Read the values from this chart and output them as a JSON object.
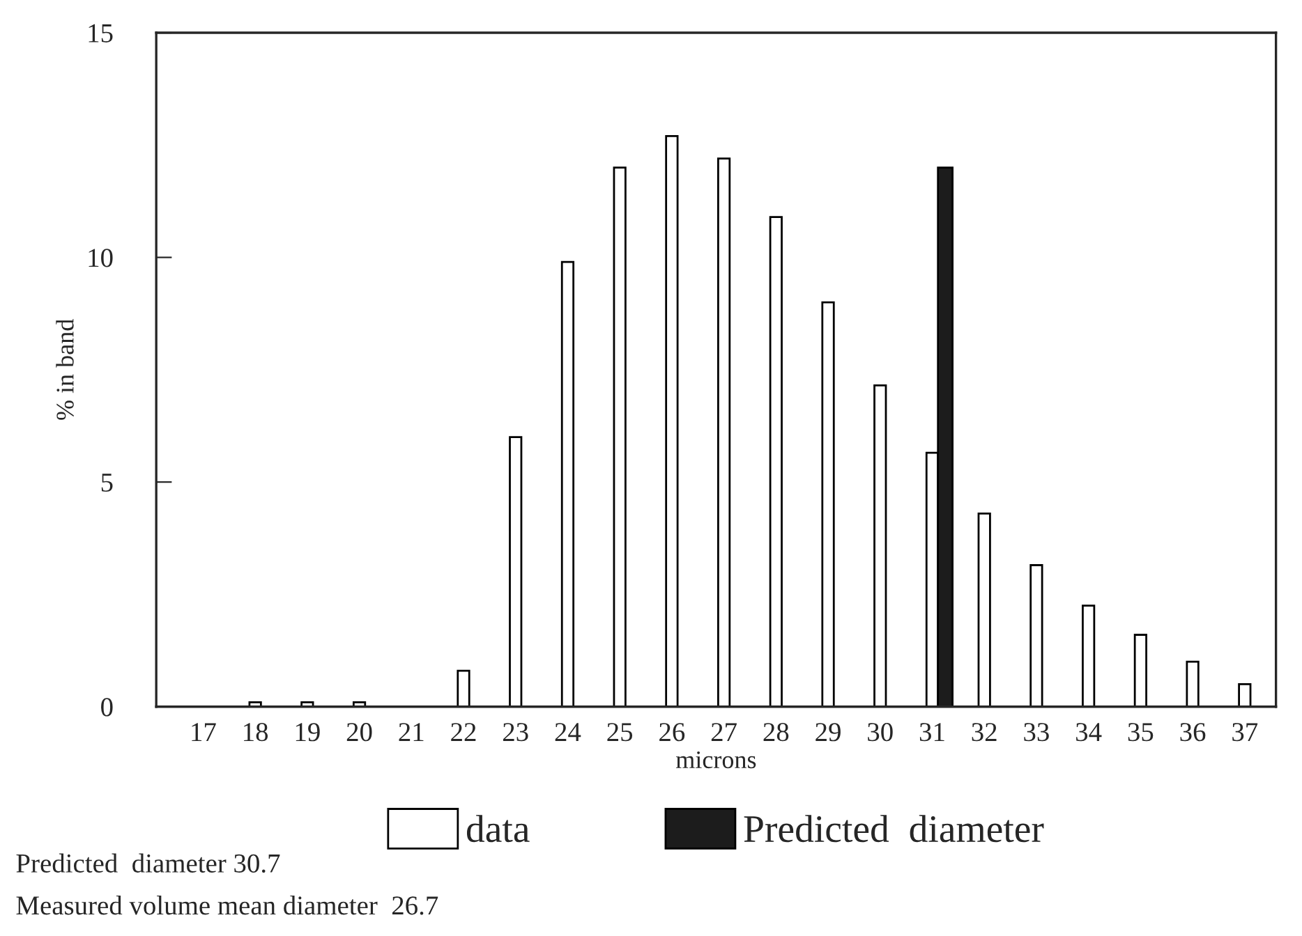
{
  "chart_data": {
    "type": "bar",
    "xlabel": "microns",
    "ylabel": "% in band",
    "categories": [
      "17",
      "18",
      "19",
      "20",
      "21",
      "22",
      "23",
      "24",
      "25",
      "26",
      "27",
      "28",
      "29",
      "30",
      "31",
      "32",
      "33",
      "34",
      "35",
      "36",
      "37"
    ],
    "series": [
      {
        "name": "data",
        "color": "#ffffff",
        "values": [
          0,
          0.1,
          0.1,
          0.1,
          0,
          0.8,
          6.0,
          9.9,
          12.0,
          12.7,
          12.2,
          10.9,
          9.0,
          7.15,
          5.65,
          4.3,
          3.15,
          2.25,
          1.6,
          1.0,
          0.5
        ]
      },
      {
        "name": "Predicted  diameter",
        "color": "#1c1c1c",
        "values": [
          null,
          null,
          null,
          null,
          null,
          null,
          null,
          null,
          null,
          null,
          null,
          null,
          null,
          null,
          12.0,
          null,
          null,
          null,
          null,
          null,
          null
        ]
      }
    ],
    "ylim": [
      0,
      15
    ],
    "yticks": [
      0,
      5,
      10,
      15
    ],
    "grid": false,
    "legend": "bottom",
    "annotations": [
      "Predicted  diameter 30.7",
      "Measured volume mean diameter  26.7"
    ]
  }
}
